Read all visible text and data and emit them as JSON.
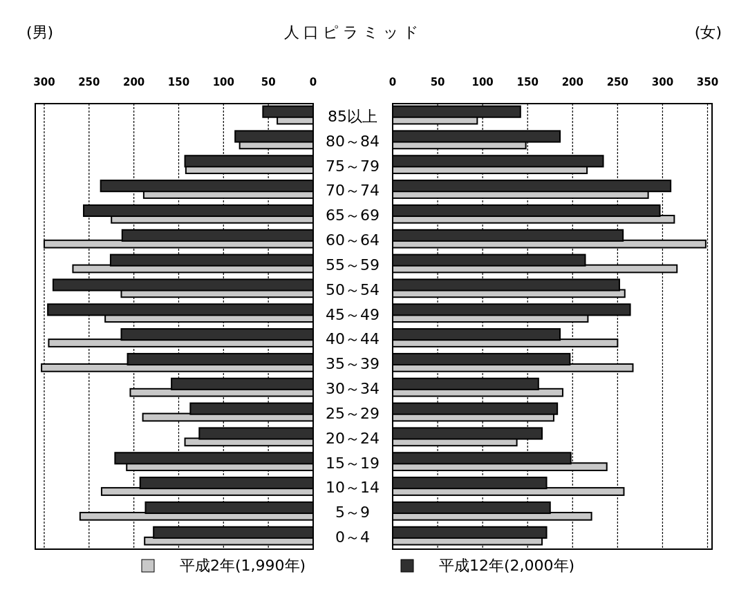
{
  "chart_data": [
    {
      "type": "bar",
      "orientation": "horizontal",
      "title": "人口ピラミッド",
      "annotations": [
        "(男)"
      ],
      "categories": [
        "85以上",
        "80～84",
        "75～79",
        "70～74",
        "65～69",
        "60～64",
        "55～59",
        "50～54",
        "45～49",
        "40～44",
        "35～39",
        "30～34",
        "25～29",
        "20～24",
        "15～19",
        "10～14",
        "5～9",
        "0～4"
      ],
      "series": [
        {
          "name": "平成2年(1,990年)",
          "color": "#c8c8c8",
          "values": [
            40,
            82,
            142,
            189,
            225,
            300,
            268,
            214,
            232,
            295,
            303,
            204,
            190,
            143,
            208,
            236,
            260,
            188
          ]
        },
        {
          "name": "平成12年(2,000年)",
          "color": "#303030",
          "values": [
            56,
            87,
            143,
            237,
            256,
            213,
            226,
            290,
            296,
            214,
            207,
            158,
            137,
            127,
            221,
            193,
            187,
            178
          ]
        }
      ],
      "xlim": [
        310,
        0
      ],
      "xticks": [
        300,
        250,
        200,
        150,
        100,
        50,
        0
      ],
      "grid": "x",
      "legend": "bottom"
    },
    {
      "type": "bar",
      "orientation": "horizontal",
      "annotations": [
        "(女)"
      ],
      "categories": [
        "85以上",
        "80～84",
        "75～79",
        "70～74",
        "65～69",
        "60～64",
        "55～59",
        "50～54",
        "45～49",
        "40～44",
        "35～39",
        "30～34",
        "25～29",
        "20～24",
        "15～19",
        "10～14",
        "5～9",
        "0～4"
      ],
      "series": [
        {
          "color": "#c8c8c8",
          "values": [
            94,
            148,
            216,
            284,
            313,
            348,
            316,
            258,
            217,
            250,
            267,
            189,
            179,
            138,
            238,
            257,
            221,
            166
          ]
        },
        {
          "color": "#303030",
          "values": [
            142,
            186,
            234,
            309,
            297,
            256,
            214,
            252,
            264,
            186,
            197,
            162,
            183,
            166,
            198,
            171,
            175,
            171
          ]
        }
      ],
      "xlim": [
        0,
        355
      ],
      "xticks": [
        0,
        50,
        100,
        150,
        200,
        250,
        300,
        350
      ],
      "grid": "x",
      "tick_labels": "x"
    }
  ]
}
